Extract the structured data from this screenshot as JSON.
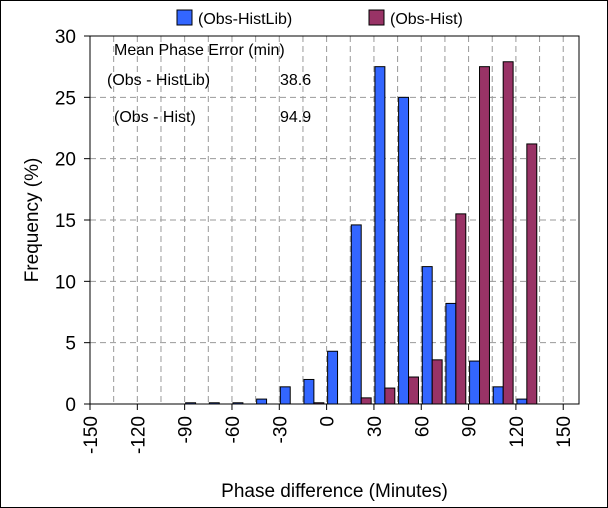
{
  "chart_data": {
    "type": "bar",
    "xlabel": "Phase difference (Minutes)",
    "ylabel": "Frequency (%)",
    "ylim": [
      0,
      30
    ],
    "yticks": [
      0,
      5,
      10,
      15,
      20,
      25,
      30
    ],
    "xlim": [
      -150,
      160
    ],
    "xtick_labels": [
      "-150",
      "-120",
      "-90",
      "-60",
      "-30",
      "0",
      "30",
      "60",
      "90",
      "120",
      "150"
    ],
    "xtick_values": [
      -150,
      -120,
      -90,
      -60,
      -30,
      0,
      30,
      60,
      90,
      120,
      150
    ],
    "grid": true,
    "legend_position": "top",
    "bin_centers": [
      -150,
      -135,
      -120,
      -105,
      -90,
      -75,
      -60,
      -45,
      -30,
      -15,
      0,
      15,
      30,
      45,
      60,
      75,
      90,
      105,
      120,
      135,
      150
    ],
    "series": [
      {
        "name": "(Obs-HistLib)",
        "color": "#3366ff",
        "values": [
          0,
          0,
          0,
          0,
          0.1,
          0.1,
          0.1,
          0.4,
          1.4,
          2.0,
          4.3,
          14.6,
          27.5,
          25.0,
          11.2,
          8.2,
          3.5,
          1.4,
          0.4,
          0,
          0
        ]
      },
      {
        "name": "(Obs-Hist)",
        "color": "#993366",
        "values": [
          0,
          0,
          0,
          0,
          0,
          0,
          0,
          0,
          0,
          0.1,
          0,
          0.5,
          1.3,
          2.2,
          3.6,
          15.5,
          27.5,
          27.9,
          21.2,
          0,
          0
        ]
      }
    ],
    "annotations": {
      "header": "Mean Phase Error (min)",
      "rows": [
        {
          "label": "(Obs - HistLib)",
          "value": "38.6"
        },
        {
          "label": "(Obs - Hist)",
          "value": "94.9"
        }
      ]
    }
  }
}
